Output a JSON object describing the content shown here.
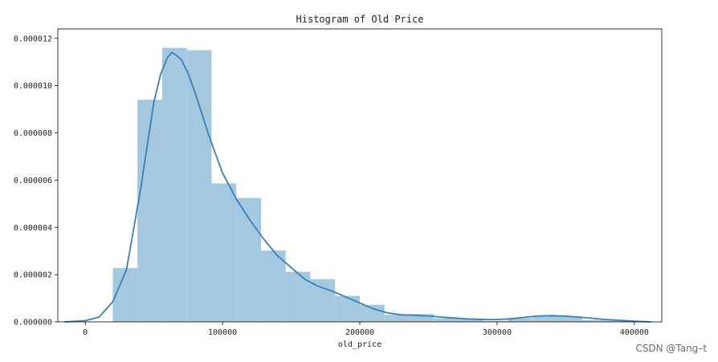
{
  "chart_data": {
    "type": "histogram",
    "title": "Histogram of Old Price",
    "xlabel": "old_price",
    "ylabel": "",
    "xlim": [
      -20000,
      420000
    ],
    "ylim": [
      0,
      1.24e-05
    ],
    "xticks": [
      0,
      100000,
      200000,
      300000,
      400000
    ],
    "xtick_labels": [
      "0",
      "100000",
      "200000",
      "300000",
      "400000"
    ],
    "yticks": [
      0,
      2e-06,
      4e-06,
      6e-06,
      8e-06,
      1e-05,
      1.2e-05
    ],
    "ytick_labels": [
      "0.000000",
      "0.000002",
      "0.000004",
      "0.000006",
      "0.000008",
      "0.000010",
      "0.000012"
    ],
    "grid": false,
    "bar_color": "#a5c8e1",
    "line_color": "#3a80b8",
    "bins": [
      {
        "x0": 20000,
        "x1": 38000,
        "density": 2.28e-06
      },
      {
        "x0": 38000,
        "x1": 56000,
        "density": 9.4e-06
      },
      {
        "x0": 56000,
        "x1": 74000,
        "density": 1.16e-05
      },
      {
        "x0": 74000,
        "x1": 92000,
        "density": 1.15e-05
      },
      {
        "x0": 92000,
        "x1": 110000,
        "density": 5.86e-06
      },
      {
        "x0": 110000,
        "x1": 128000,
        "density": 5.24e-06
      },
      {
        "x0": 128000,
        "x1": 146000,
        "density": 3.02e-06
      },
      {
        "x0": 146000,
        "x1": 164000,
        "density": 2.12e-06
      },
      {
        "x0": 164000,
        "x1": 182000,
        "density": 1.8e-06
      },
      {
        "x0": 182000,
        "x1": 200000,
        "density": 1.1e-06
      },
      {
        "x0": 200000,
        "x1": 218000,
        "density": 7.2e-07
      },
      {
        "x0": 218000,
        "x1": 236000,
        "density": 3e-07
      },
      {
        "x0": 236000,
        "x1": 254000,
        "density": 3.3e-07
      },
      {
        "x0": 254000,
        "x1": 272000,
        "density": 1.6e-07
      },
      {
        "x0": 272000,
        "x1": 290000,
        "density": 1.5e-07
      },
      {
        "x0": 290000,
        "x1": 308000,
        "density": 4e-08
      },
      {
        "x0": 308000,
        "x1": 326000,
        "density": 1.6e-07
      },
      {
        "x0": 326000,
        "x1": 344000,
        "density": 2.6e-07
      },
      {
        "x0": 344000,
        "x1": 362000,
        "density": 2.3e-07
      },
      {
        "x0": 362000,
        "x1": 380000,
        "density": 8e-08
      },
      {
        "x0": 380000,
        "x1": 398000,
        "density": 6e-08
      }
    ],
    "kde": {
      "x": [
        -15000,
        0,
        10000,
        20000,
        30000,
        40000,
        50000,
        55000,
        60000,
        63000,
        66000,
        70000,
        75000,
        80000,
        85000,
        90000,
        95000,
        100000,
        110000,
        120000,
        130000,
        140000,
        150000,
        160000,
        170000,
        180000,
        190000,
        200000,
        210000,
        220000,
        230000,
        240000,
        250000,
        260000,
        270000,
        280000,
        290000,
        300000,
        310000,
        320000,
        330000,
        340000,
        350000,
        360000,
        370000,
        380000,
        390000,
        400000,
        412000
      ],
      "y": [
        0,
        5e-08,
        2e-07,
        8.5e-07,
        2.2e-06,
        5.5e-06,
        9.3e-06,
        1.05e-05,
        1.12e-05,
        1.14e-05,
        1.13e-05,
        1.11e-05,
        1.05e-05,
        9.7e-06,
        8.8e-06,
        7.9e-06,
        7.1e-06,
        6.3e-06,
        5.2e-06,
        4.3e-06,
        3.5e-06,
        2.8e-06,
        2.3e-06,
        1.8e-06,
        1.5e-06,
        1.3e-06,
        1.05e-06,
        8e-07,
        5.5e-07,
        3.8e-07,
        3e-07,
        2.8e-07,
        2.5e-07,
        2e-07,
        1.6e-07,
        1.2e-07,
        1e-07,
        1e-07,
        1.3e-07,
        1.9e-07,
        2.5e-07,
        2.6e-07,
        2.4e-07,
        2e-07,
        1.5e-07,
        1e-07,
        6e-08,
        3e-08,
        0.0
      ]
    }
  },
  "watermark": "CSDN @Tang–t"
}
